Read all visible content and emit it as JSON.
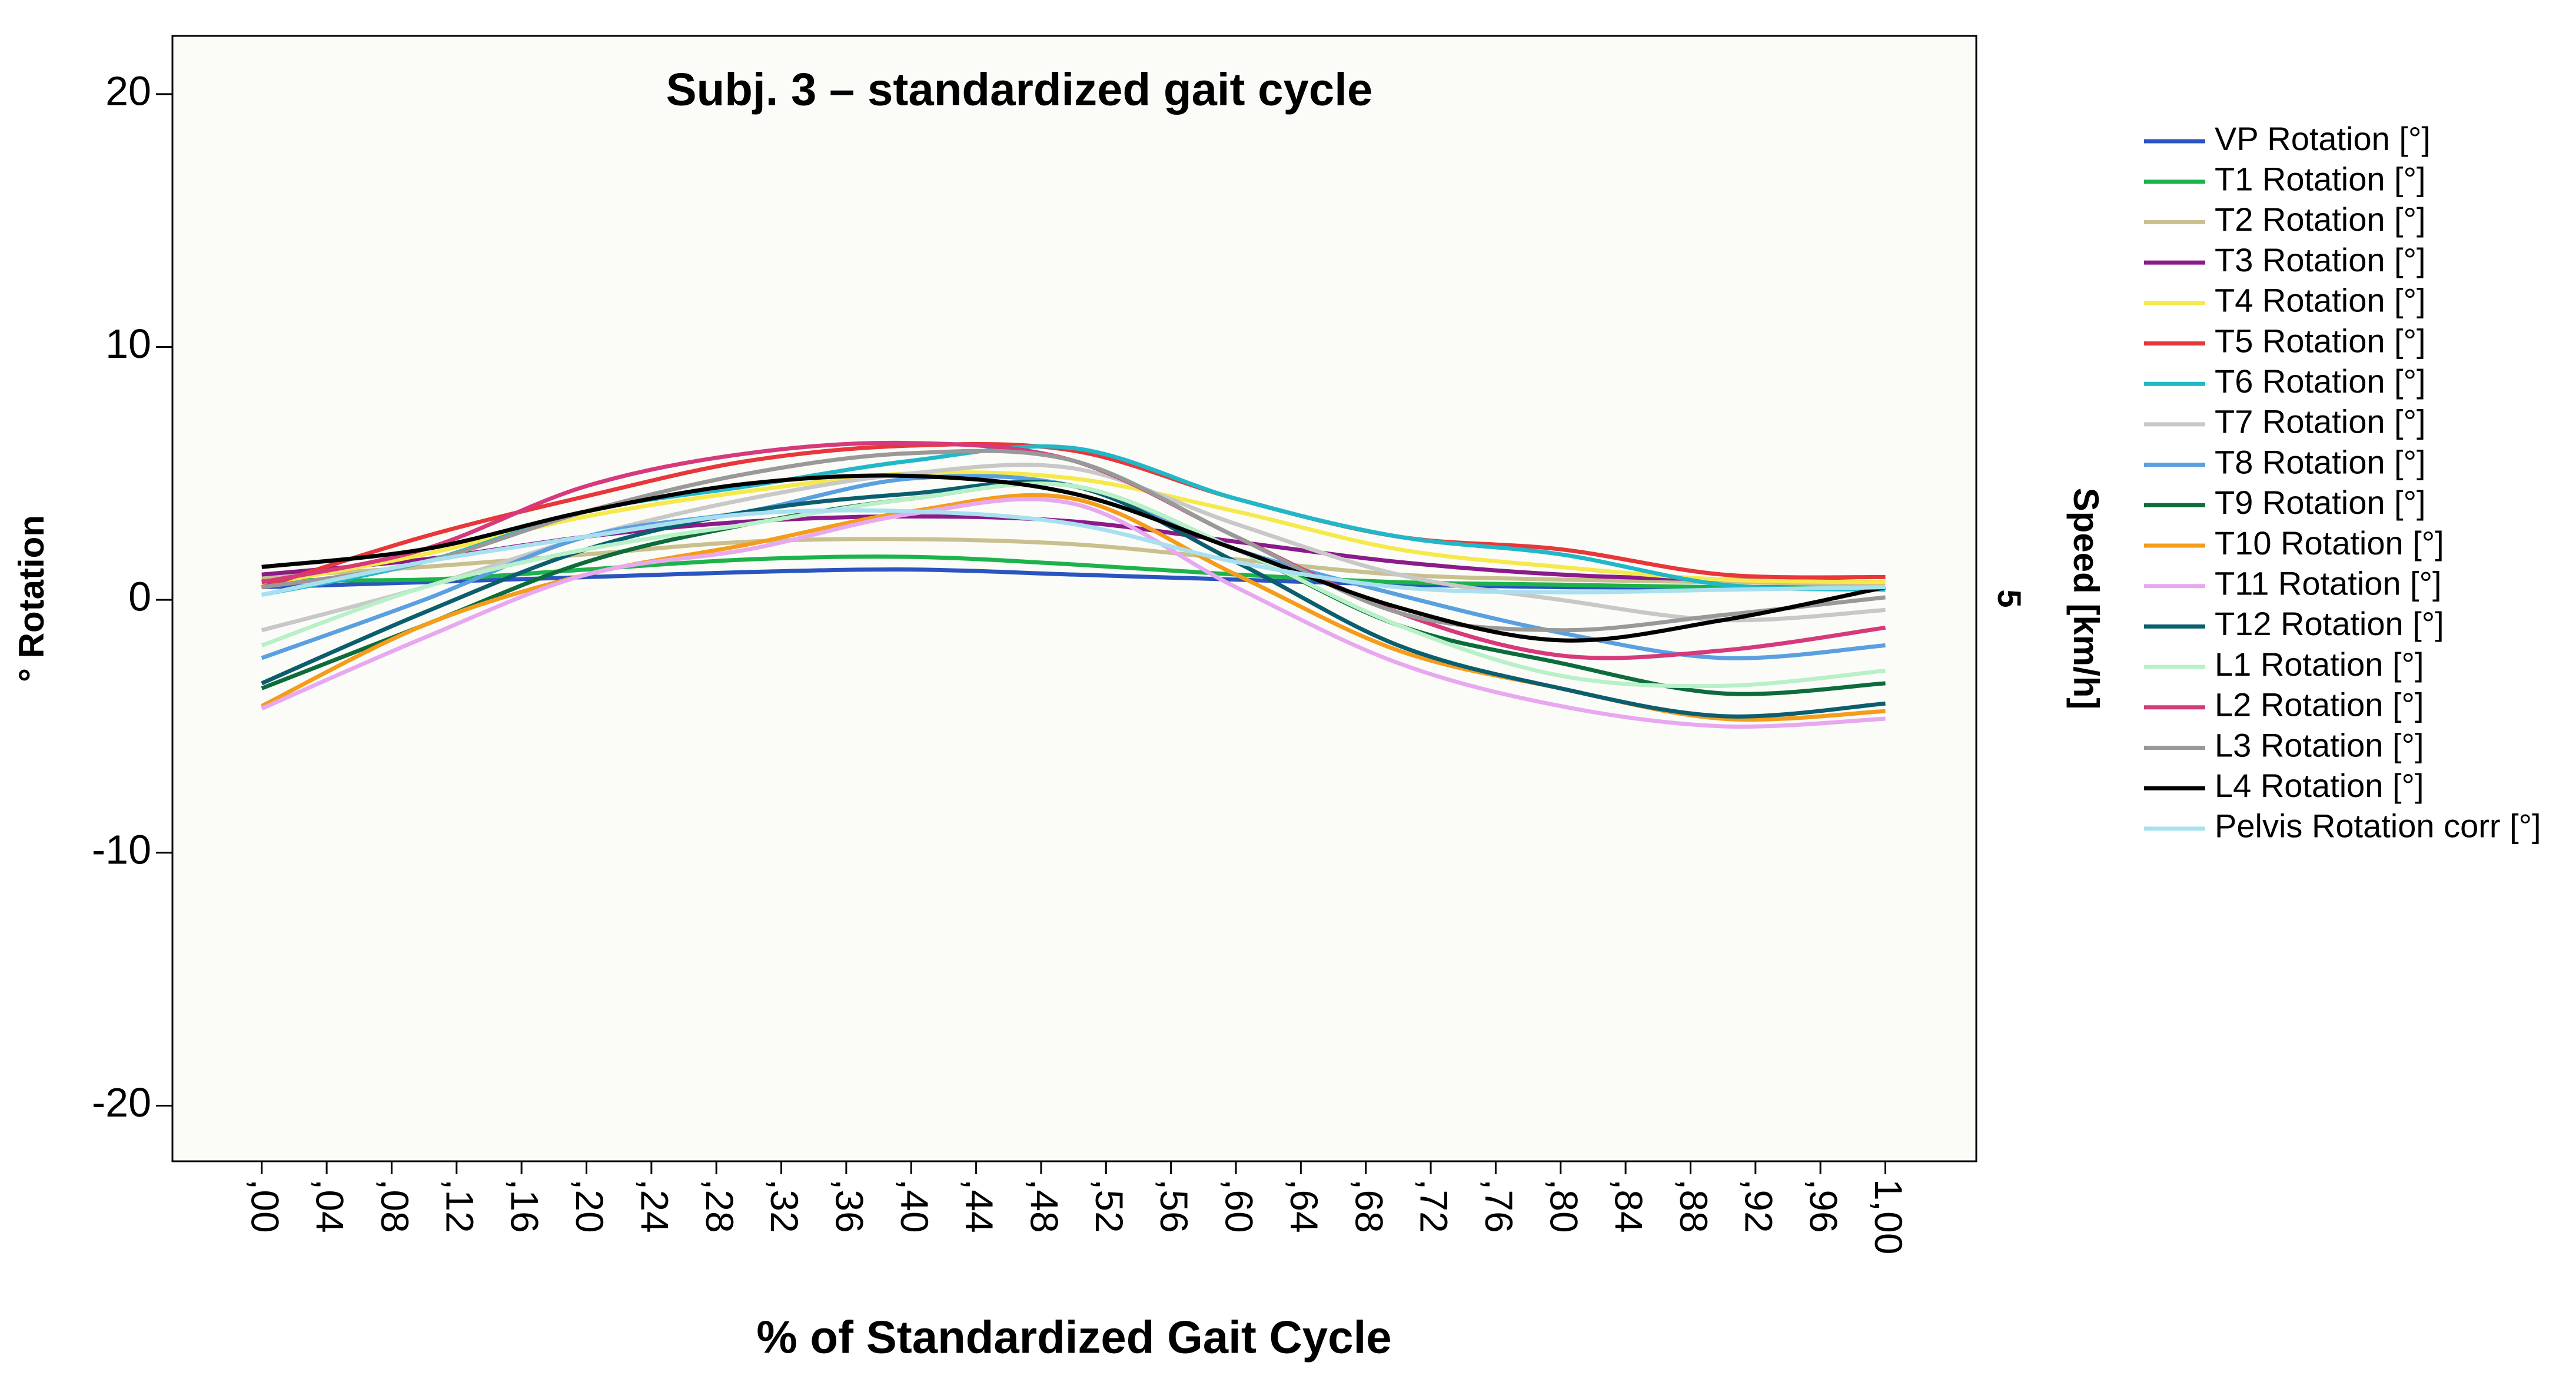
{
  "chart_data": {
    "type": "line",
    "title": "Subj. 3 – standardized gait cycle",
    "x_label": "% of Standardized Gait Cycle",
    "y_label": "° Rotation",
    "y2_label": "Speed [km/h]",
    "x": [
      0,
      0.1,
      0.2,
      0.3,
      0.4,
      0.5,
      0.6,
      0.7,
      0.8,
      0.9,
      1.0
    ],
    "xlim": [
      -0.055,
      1.056
    ],
    "ylim": [
      -22.2,
      22.3
    ],
    "y2lim": [
      0,
      10
    ],
    "y2ticks": [
      5
    ],
    "yticks": [
      -20,
      -10,
      0,
      10,
      20
    ],
    "xticks": [
      {
        "value": 0,
        "label": ",00"
      },
      {
        "value": 0.04,
        "label": ",04"
      },
      {
        "value": 0.08,
        "label": ",08"
      },
      {
        "value": 0.12,
        "label": ",12"
      },
      {
        "value": 0.16,
        "label": ",16"
      },
      {
        "value": 0.2,
        "label": ",20"
      },
      {
        "value": 0.24,
        "label": ",24"
      },
      {
        "value": 0.28,
        "label": ",28"
      },
      {
        "value": 0.32,
        "label": ",32"
      },
      {
        "value": 0.36,
        "label": ",36"
      },
      {
        "value": 0.4,
        "label": ",40"
      },
      {
        "value": 0.44,
        "label": ",44"
      },
      {
        "value": 0.48,
        "label": ",48"
      },
      {
        "value": 0.52,
        "label": ",52"
      },
      {
        "value": 0.56,
        "label": ",56"
      },
      {
        "value": 0.6,
        "label": ",60"
      },
      {
        "value": 0.64,
        "label": ",64"
      },
      {
        "value": 0.68,
        "label": ",68"
      },
      {
        "value": 0.72,
        "label": ",72"
      },
      {
        "value": 0.76,
        "label": ",76"
      },
      {
        "value": 0.8,
        "label": ",80"
      },
      {
        "value": 0.84,
        "label": ",84"
      },
      {
        "value": 0.88,
        "label": ",88"
      },
      {
        "value": 0.92,
        "label": ",92"
      },
      {
        "value": 0.96,
        "label": ",96"
      },
      {
        "value": 1.0,
        "label": "1,00"
      }
    ],
    "grid": false,
    "legend": "right",
    "series": [
      {
        "name": "VP Rotation [°]",
        "color": "#2a55c0",
        "values": [
          0.5,
          0.7,
          0.9,
          1.1,
          1.2,
          1.0,
          0.8,
          0.6,
          0.5,
          0.5,
          0.5
        ]
      },
      {
        "name": "T1 Rotation [°]",
        "color": "#1db34b",
        "values": [
          0.8,
          0.8,
          1.2,
          1.6,
          1.7,
          1.4,
          1.0,
          0.7,
          0.6,
          0.5,
          0.5
        ]
      },
      {
        "name": "T2 Rotation [°]",
        "color": "#c9c08f",
        "values": [
          0.9,
          1.3,
          1.8,
          2.3,
          2.4,
          2.2,
          1.6,
          1.0,
          0.8,
          0.7,
          0.6
        ]
      },
      {
        "name": "T3 Rotation [°]",
        "color": "#8b1a8b",
        "values": [
          1.0,
          1.6,
          2.5,
          3.1,
          3.3,
          3.1,
          2.3,
          1.5,
          1.0,
          0.8,
          0.7
        ]
      },
      {
        "name": "T4 Rotation [°]",
        "color": "#f6e94c",
        "values": [
          0.6,
          1.8,
          3.3,
          4.3,
          5.0,
          4.8,
          3.5,
          2.0,
          1.3,
          0.8,
          0.7
        ]
      },
      {
        "name": "T5 Rotation [°]",
        "color": "#e8373a",
        "values": [
          0.5,
          2.5,
          4.1,
          5.5,
          6.1,
          5.9,
          4.0,
          2.5,
          2.0,
          1.0,
          0.9
        ]
      },
      {
        "name": "T6 Rotation [°]",
        "color": "#20b8c8",
        "values": [
          0.2,
          1.5,
          3.5,
          4.5,
          5.5,
          6.0,
          4.0,
          2.5,
          1.8,
          0.6,
          0.4
        ]
      },
      {
        "name": "T7 Rotation [°]",
        "color": "#c8c8c8",
        "values": [
          -1.2,
          0.5,
          2.5,
          4.0,
          5.0,
          5.2,
          3.0,
          1.0,
          0.0,
          -0.8,
          -0.4
        ]
      },
      {
        "name": "T8 Rotation [°]",
        "color": "#5aa0e0",
        "values": [
          -2.3,
          0.0,
          2.5,
          3.5,
          4.8,
          4.5,
          2.0,
          0.2,
          -1.3,
          -2.3,
          -1.8
        ]
      },
      {
        "name": "T9 Rotation [°]",
        "color": "#0e6b3c",
        "values": [
          -3.5,
          -1.0,
          1.5,
          3.0,
          4.0,
          4.5,
          2.0,
          -1.0,
          -2.5,
          -3.7,
          -3.3
        ]
      },
      {
        "name": "T10 Rotation [°]",
        "color": "#f49c1c",
        "values": [
          -4.2,
          -1.0,
          1.0,
          2.2,
          3.5,
          4.0,
          1.0,
          -2.0,
          -3.5,
          -4.7,
          -4.4
        ]
      },
      {
        "name": "T11 Rotation [°]",
        "color": "#e8a8f0",
        "values": [
          -4.3,
          -1.5,
          1.0,
          2.0,
          3.4,
          3.8,
          0.5,
          -2.5,
          -4.2,
          -5.0,
          -4.7
        ]
      },
      {
        "name": "T12 Rotation [°]",
        "color": "#0b5e6e",
        "values": [
          -3.3,
          -0.5,
          2.0,
          3.5,
          4.2,
          4.5,
          1.5,
          -1.8,
          -3.5,
          -4.6,
          -4.1
        ]
      },
      {
        "name": "L1 Rotation [°]",
        "color": "#b8f0c8",
        "values": [
          -1.8,
          0.5,
          2.0,
          3.0,
          4.0,
          4.5,
          2.0,
          -1.0,
          -3.0,
          -3.4,
          -2.8
        ]
      },
      {
        "name": "L2 Rotation [°]",
        "color": "#d63a7a",
        "values": [
          0.7,
          2.0,
          4.5,
          5.8,
          6.2,
          5.5,
          2.5,
          -0.5,
          -2.2,
          -2.0,
          -1.1
        ]
      },
      {
        "name": "L3 Rotation [°]",
        "color": "#999999",
        "values": [
          0.5,
          1.5,
          3.5,
          5.0,
          5.8,
          5.5,
          2.5,
          -0.5,
          -1.2,
          -0.6,
          0.1
        ]
      },
      {
        "name": "L4 Rotation [°]",
        "color": "#000000",
        "values": [
          1.3,
          2.0,
          3.5,
          4.6,
          4.9,
          4.2,
          2.0,
          -0.3,
          -1.6,
          -0.8,
          0.5
        ]
      },
      {
        "name": "Pelvis Rotation corr [°]",
        "color": "#a8e0f0",
        "values": [
          0.2,
          1.5,
          2.5,
          3.4,
          3.5,
          3.0,
          1.5,
          0.5,
          0.3,
          0.4,
          0.5
        ]
      }
    ]
  }
}
